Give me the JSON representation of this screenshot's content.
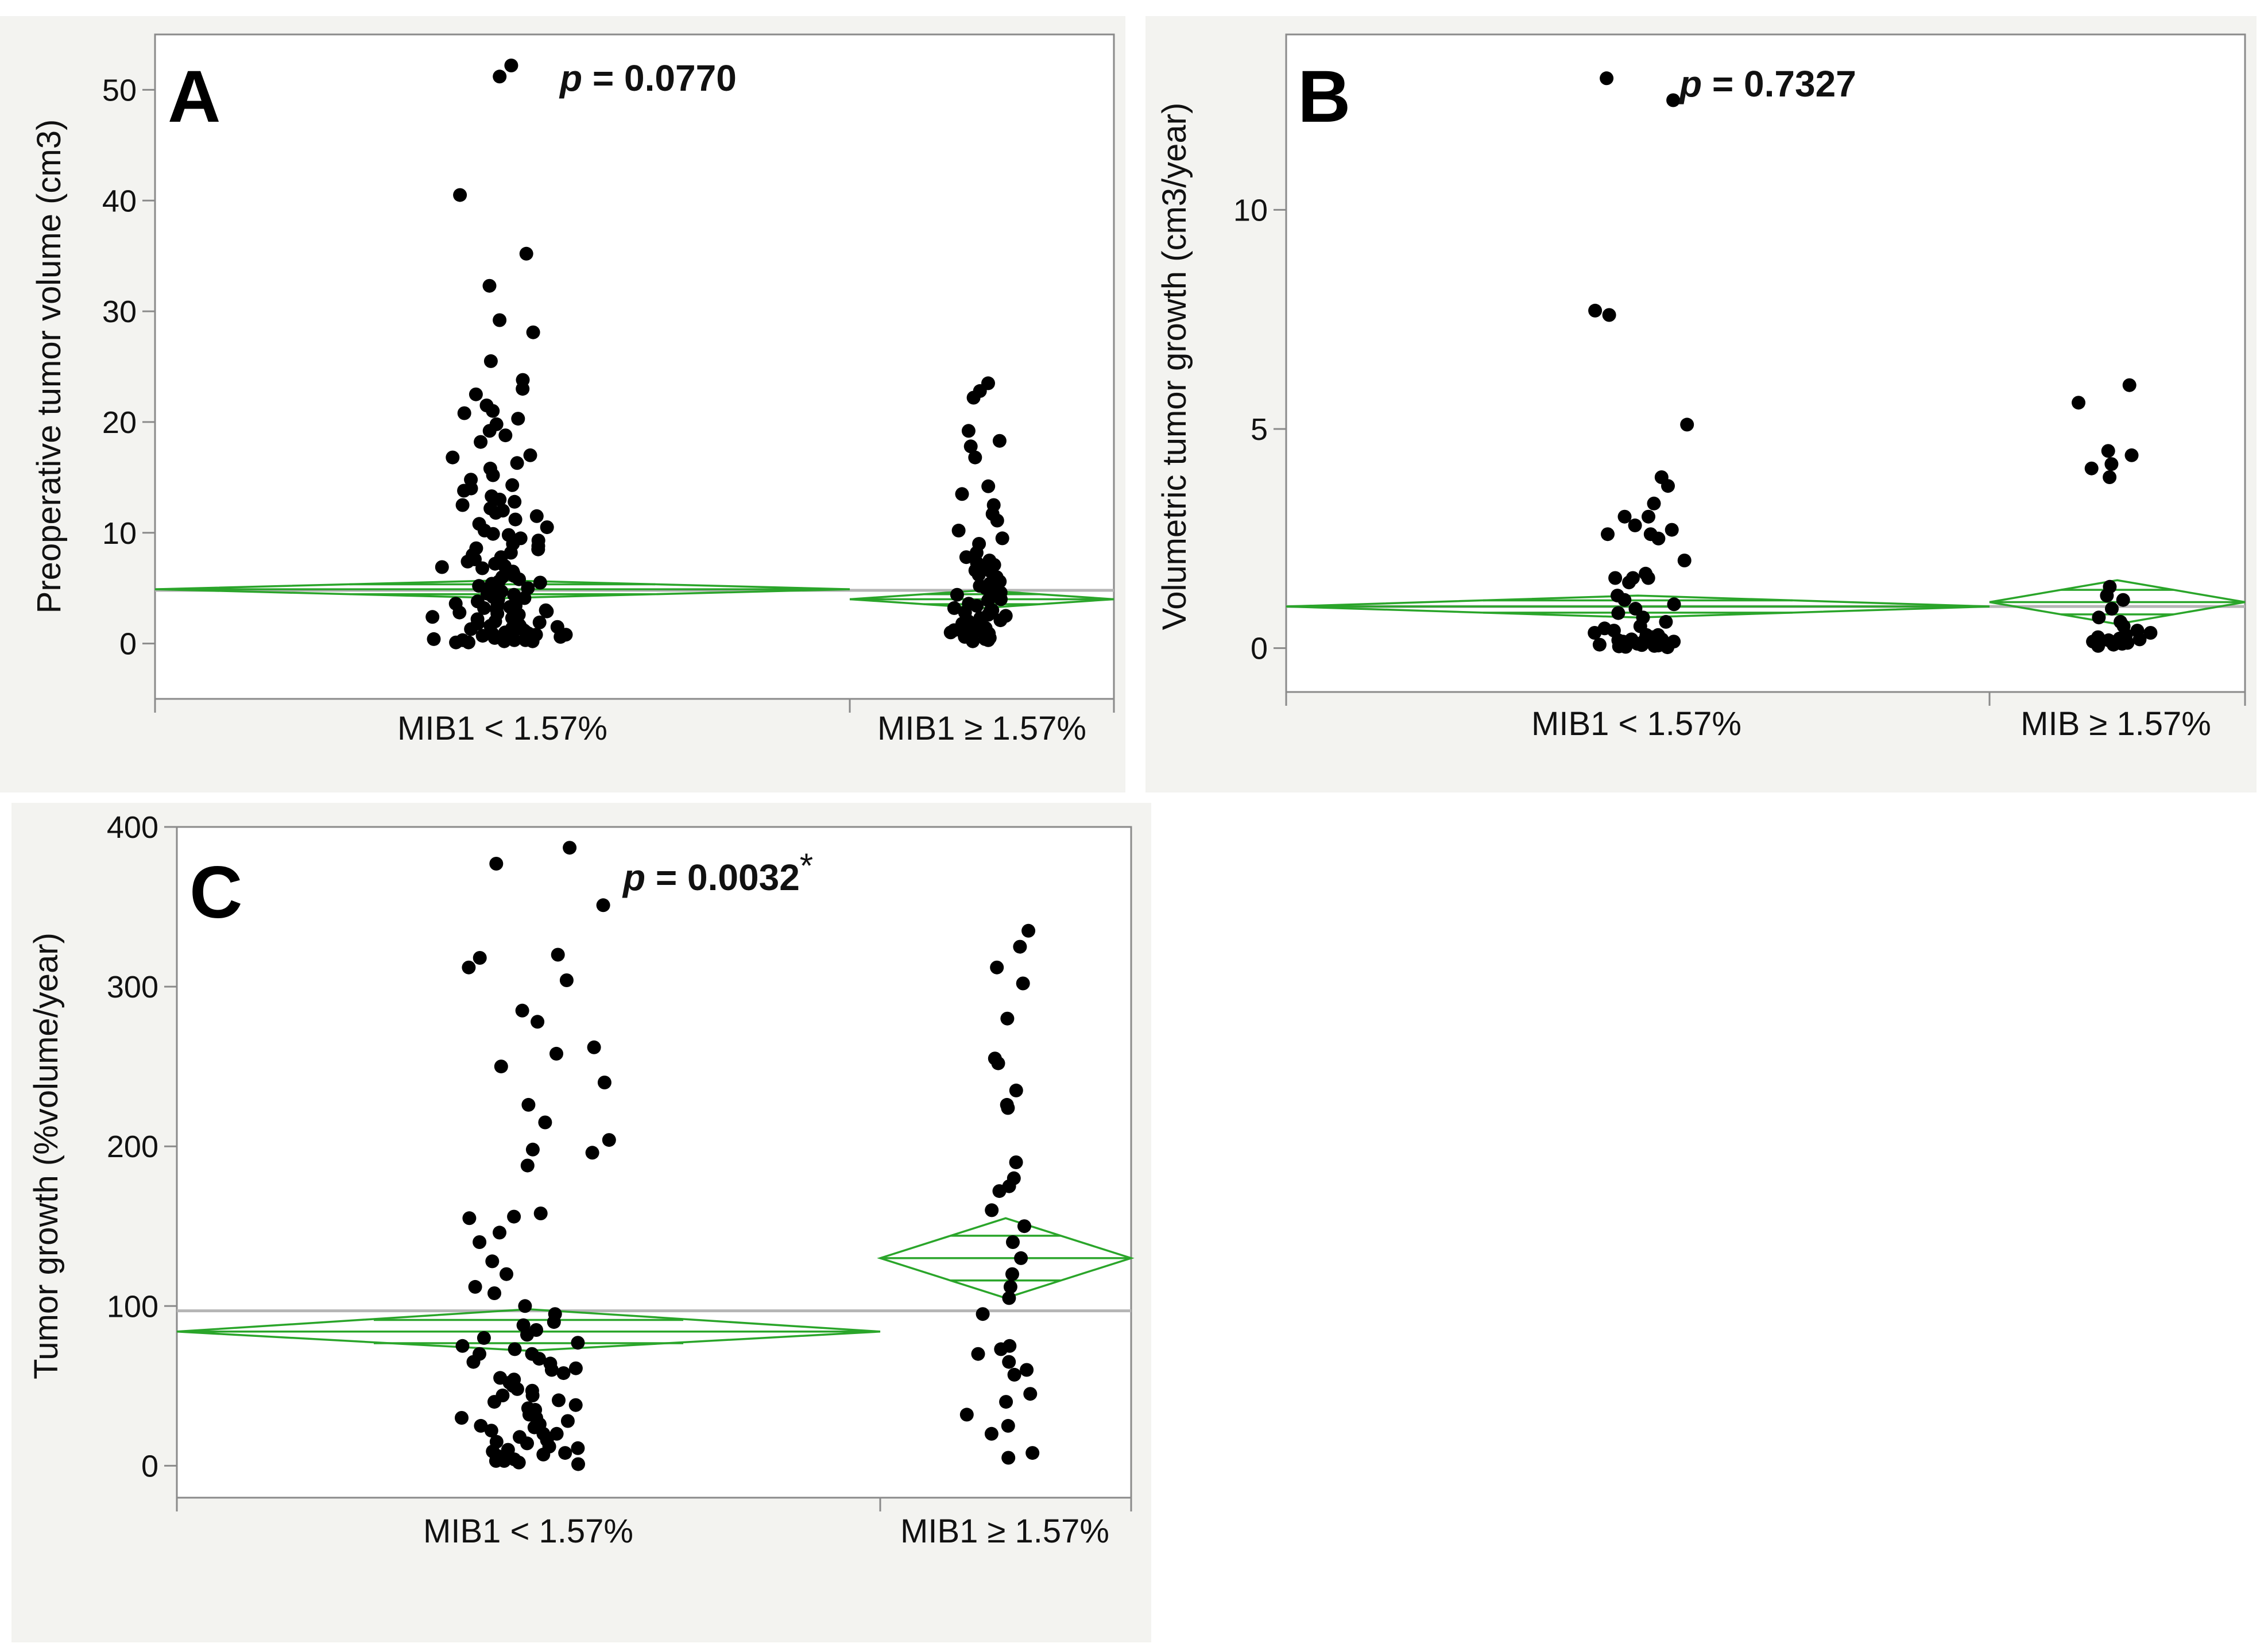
{
  "chart_data": [
    {
      "panel": "A",
      "type": "scatter",
      "ylabel": "Preoperative tumor volume (cm3)",
      "ylim": [
        -5,
        55
      ],
      "yticks": [
        0,
        10,
        20,
        30,
        40,
        50
      ],
      "categories": [
        "MIB1 < 1.57%",
        "MIB1 ≥ 1.57%"
      ],
      "p_value": {
        "p": "p",
        "eq": " = ",
        "value": "0.0770",
        "star": ""
      },
      "grand_mean": 4.8,
      "group_stats": [
        {
          "mean": 4.9,
          "lower": 4.1,
          "upper": 5.7
        },
        {
          "mean": 4.0,
          "lower": 3.2,
          "upper": 4.8
        }
      ],
      "series": [
        {
          "name": "MIB1 < 1.57%",
          "values": [
            52.2,
            51.2,
            40.5,
            35.2,
            32.3,
            29.2,
            28.1,
            25.5,
            23.8,
            23.0,
            22.5,
            21.0,
            20.3,
            19.8,
            18.2,
            17.0,
            16.3,
            15.2,
            14.3,
            13.8,
            13.0,
            12.5,
            12.0,
            11.2,
            10.8,
            10.2,
            9.8,
            9.3,
            9.0,
            8.5,
            8.0,
            7.6,
            7.2,
            6.9,
            6.5,
            6.1,
            5.8,
            5.4,
            5.0,
            4.7,
            4.4,
            4.1,
            3.8,
            3.5,
            3.2,
            2.9,
            2.6,
            2.3,
            2.0,
            1.8,
            1.6,
            1.4,
            1.2,
            1.0,
            0.8,
            0.6,
            0.4,
            0.3,
            0.2,
            0.1,
            0.5,
            0.9,
            1.5,
            2.5,
            3.0,
            4.0,
            6.0,
            7.0,
            11.5,
            14.0,
            18.8,
            21.5,
            0.3,
            0.7,
            1.1,
            1.7,
            2.2,
            2.8,
            3.6,
            4.5,
            5.5,
            6.8,
            8.2,
            9.5,
            12.8,
            15.8,
            0.2,
            0.6,
            1.3,
            2.1,
            3.4,
            5.2,
            7.8,
            10.5,
            13.3,
            16.8,
            0.4,
            0.9,
            1.9,
            2.7,
            4.2,
            6.3,
            8.8,
            11.8,
            0.1,
            0.5,
            1.0,
            1.5,
            2.4,
            3.3,
            4.9,
            7.4,
            9.9,
            14.8,
            19.2,
            20.8,
            0.3,
            0.8,
            1.6,
            3.1,
            5.6,
            8.6,
            12.2
          ]
        },
        {
          "name": "MIB1 ≥ 1.57%",
          "values": [
            23.5,
            22.8,
            22.2,
            19.2,
            18.3,
            17.8,
            16.8,
            14.2,
            13.5,
            12.5,
            11.7,
            11.1,
            10.2,
            9.5,
            9.0,
            8.2,
            7.8,
            7.5,
            7.1,
            6.8,
            6.5,
            6.0,
            5.6,
            5.2,
            4.8,
            4.4,
            4.0,
            3.6,
            3.2,
            2.9,
            2.5,
            2.1,
            1.8,
            1.5,
            1.2,
            1.0,
            0.8,
            0.6,
            0.4,
            0.3,
            0.2,
            0.5,
            1.1,
            1.7,
            2.3,
            2.8,
            3.4,
            4.2,
            5.0,
            6.2,
            7.3,
            0.9,
            1.4,
            2.0,
            3.0,
            3.9,
            5.4,
            6.6,
            0.6,
            1.3,
            2.6,
            4.6
          ]
        }
      ]
    },
    {
      "panel": "B",
      "type": "scatter",
      "ylabel": "Volumetric tumor growth (cm3/year)",
      "ylim": [
        -1,
        14
      ],
      "yticks": [
        0,
        5,
        10
      ],
      "categories": [
        "MIB1 < 1.57%",
        "MIB ≥ 1.57%"
      ],
      "p_value": {
        "p": "p",
        "eq": " = ",
        "value": "0.7327",
        "star": ""
      },
      "grand_mean": 0.95,
      "group_stats": [
        {
          "mean": 0.95,
          "lower": 0.7,
          "upper": 1.2
        },
        {
          "mean": 1.05,
          "lower": 0.55,
          "upper": 1.55
        }
      ],
      "series": [
        {
          "name": "MIB1 < 1.57%",
          "values": [
            13.0,
            12.5,
            7.7,
            7.6,
            5.1,
            3.9,
            3.7,
            3.3,
            3.0,
            3.0,
            2.8,
            2.7,
            2.6,
            2.6,
            2.5,
            2.0,
            1.7,
            1.6,
            1.6,
            1.6,
            1.5,
            1.2,
            1.1,
            1.0,
            0.9,
            0.8,
            0.7,
            0.6,
            0.5,
            0.4,
            0.3,
            0.3,
            0.2,
            0.2,
            0.15,
            0.1,
            0.1,
            0.08,
            0.05,
            0.05,
            0.03,
            0.02,
            0.1,
            0.15,
            0.2,
            0.25,
            0.35,
            0.45,
            0.12,
            0.18,
            0.22,
            0.07,
            0.04,
            0.06
          ]
        },
        {
          "name": "MIB ≥ 1.57%",
          "values": [
            6.0,
            5.6,
            4.5,
            4.4,
            4.2,
            4.1,
            3.9,
            1.4,
            1.2,
            1.1,
            0.9,
            0.7,
            0.6,
            0.5,
            0.4,
            0.35,
            0.3,
            0.25,
            0.2,
            0.15,
            0.1,
            0.08,
            0.05,
            0.12,
            0.18,
            0.22
          ]
        }
      ]
    },
    {
      "panel": "C",
      "type": "scatter",
      "ylabel": "Tumor growth (%volume/year)",
      "ylim": [
        -20,
        400
      ],
      "yticks": [
        0,
        100,
        200,
        300,
        400
      ],
      "categories": [
        "MIB1 < 1.57%",
        "MIB1 ≥ 1.57%"
      ],
      "p_value": {
        "p": "p",
        "eq": " = ",
        "value": "0.0032",
        "star": "*"
      },
      "grand_mean": 97,
      "group_stats": [
        {
          "mean": 84,
          "lower": 72,
          "upper": 98
        },
        {
          "mean": 130,
          "lower": 105,
          "upper": 155
        }
      ],
      "series": [
        {
          "name": "MIB1 < 1.57%",
          "values": [
            387,
            377,
            351,
            320,
            318,
            312,
            304,
            285,
            278,
            262,
            258,
            250,
            240,
            226,
            215,
            204,
            198,
            196,
            188,
            158,
            156,
            155,
            146,
            140,
            128,
            120,
            112,
            108,
            100,
            95,
            90,
            88,
            85,
            82,
            80,
            77,
            75,
            73,
            70,
            67,
            64,
            61,
            58,
            55,
            52,
            50,
            47,
            44,
            41,
            38,
            35,
            32,
            30,
            28,
            25,
            22,
            20,
            18,
            15,
            12,
            10,
            8,
            6,
            5,
            3,
            2,
            1,
            30,
            26,
            20,
            16,
            9,
            4,
            14,
            7,
            3,
            40,
            60,
            70,
            48,
            36,
            24,
            11,
            65,
            54,
            44,
            33
          ]
        },
        {
          "name": "MIB1 ≥ 1.57%",
          "values": [
            335,
            325,
            312,
            302,
            280,
            255,
            252,
            235,
            226,
            224,
            190,
            180,
            175,
            172,
            160,
            150,
            140,
            130,
            120,
            112,
            105,
            95,
            75,
            73,
            70,
            65,
            60,
            57,
            45,
            40,
            32,
            25,
            20,
            8,
            5
          ]
        }
      ]
    }
  ]
}
